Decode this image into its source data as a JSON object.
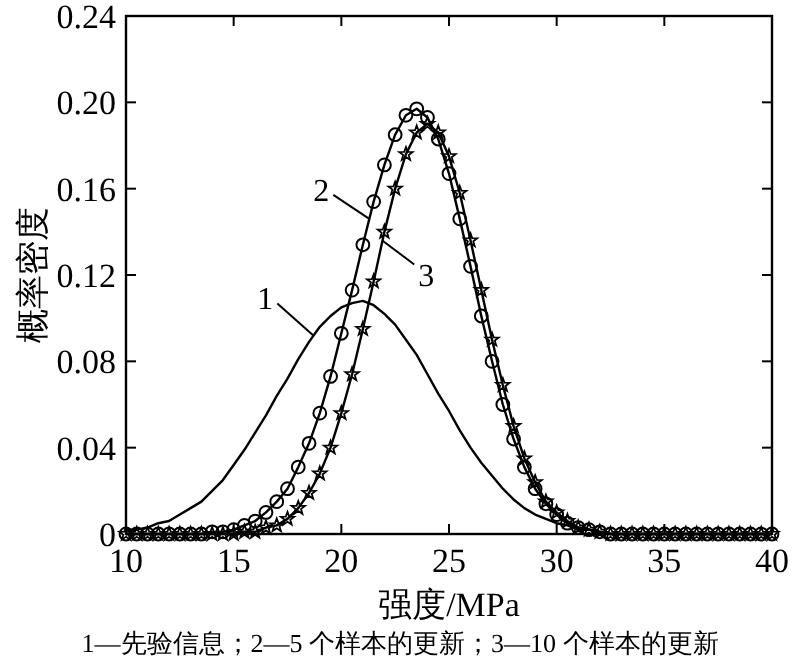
{
  "chart_data": {
    "type": "line",
    "xlabel": "强度/MPa",
    "ylabel": "概率密度",
    "xlim": [
      10,
      40
    ],
    "ylim": [
      0,
      0.24
    ],
    "xticks": [
      10,
      15,
      20,
      25,
      30,
      35,
      40
    ],
    "yticks": [
      {
        "value": 0,
        "label": "0"
      },
      {
        "value": 0.04,
        "label": "0.04"
      },
      {
        "value": 0.08,
        "label": "0.08"
      },
      {
        "value": 0.12,
        "label": "0.12"
      },
      {
        "value": 0.16,
        "label": "0.16"
      },
      {
        "value": 0.2,
        "label": "0.20"
      },
      {
        "value": 0.24,
        "label": "0.24"
      }
    ],
    "x": [
      10,
      10.5,
      11,
      11.5,
      12,
      12.5,
      13,
      13.5,
      14,
      14.5,
      15,
      15.5,
      16,
      16.5,
      17,
      17.5,
      18,
      18.5,
      19,
      19.5,
      20,
      20.5,
      21,
      21.5,
      22,
      22.5,
      23,
      23.5,
      24,
      24.5,
      25,
      25.5,
      26,
      26.5,
      27,
      27.5,
      28,
      28.5,
      29,
      29.5,
      30,
      30.5,
      31,
      31.5,
      32,
      32.5,
      33,
      33.5,
      34,
      34.5,
      35,
      35.5,
      36,
      36.5,
      37,
      37.5,
      38,
      38.5,
      39,
      39.5,
      40
    ],
    "series": [
      {
        "color": "#000000",
        "marker": "none",
        "values": [
          0.002,
          0.002,
          0.003,
          0.005,
          0.006,
          0.009,
          0.012,
          0.015,
          0.02,
          0.025,
          0.032,
          0.039,
          0.047,
          0.055,
          0.064,
          0.072,
          0.081,
          0.089,
          0.096,
          0.101,
          0.105,
          0.107,
          0.108,
          0.106,
          0.102,
          0.097,
          0.09,
          0.083,
          0.074,
          0.065,
          0.057,
          0.048,
          0.04,
          0.033,
          0.027,
          0.021,
          0.016,
          0.012,
          0.009,
          0.007,
          0.005,
          0.004,
          0.002,
          0.002,
          0.001,
          0,
          0,
          0,
          0,
          0,
          0,
          0,
          0,
          0,
          0,
          0,
          0,
          0,
          0,
          0,
          0
        ]
      },
      {
        "color": "#000000",
        "marker": "circle",
        "values": [
          0,
          0,
          0,
          0,
          0,
          0,
          0,
          0,
          0.001,
          0.001,
          0.002,
          0.004,
          0.006,
          0.01,
          0.015,
          0.021,
          0.031,
          0.042,
          0.056,
          0.073,
          0.093,
          0.113,
          0.134,
          0.154,
          0.171,
          0.185,
          0.194,
          0.197,
          0.193,
          0.183,
          0.167,
          0.146,
          0.124,
          0.101,
          0.08,
          0.06,
          0.044,
          0.031,
          0.021,
          0.014,
          0.009,
          0.005,
          0.003,
          0.002,
          0.001,
          0,
          0,
          0,
          0,
          0,
          0,
          0,
          0,
          0,
          0,
          0,
          0,
          0,
          0,
          0,
          0
        ]
      },
      {
        "color": "#000000",
        "marker": "star",
        "values": [
          0,
          0,
          0,
          0,
          0,
          0,
          0,
          0,
          0,
          0,
          0,
          0.001,
          0.001,
          0.003,
          0.004,
          0.007,
          0.012,
          0.019,
          0.028,
          0.04,
          0.056,
          0.074,
          0.095,
          0.117,
          0.14,
          0.16,
          0.176,
          0.186,
          0.19,
          0.186,
          0.175,
          0.158,
          0.136,
          0.113,
          0.09,
          0.069,
          0.05,
          0.035,
          0.024,
          0.015,
          0.01,
          0.006,
          0.003,
          0.002,
          0.001,
          0,
          0,
          0,
          0,
          0,
          0,
          0,
          0,
          0,
          0,
          0,
          0,
          0,
          0,
          0,
          0
        ]
      }
    ],
    "annotations": [
      {
        "text": "1",
        "x": 18.7,
        "y": 0.092
      },
      {
        "text": "2",
        "x": 21.3,
        "y": 0.146
      },
      {
        "text": "3",
        "x": 21.9,
        "y": 0.136
      },
      "1—先验信息；2—5 个样本的更新；3—10 个样本的更新"
    ]
  }
}
